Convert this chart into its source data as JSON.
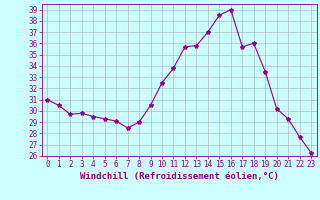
{
  "x": [
    0,
    1,
    2,
    3,
    4,
    5,
    6,
    7,
    8,
    9,
    10,
    11,
    12,
    13,
    14,
    15,
    16,
    17,
    18,
    19,
    20,
    21,
    22,
    23
  ],
  "y": [
    31.0,
    30.5,
    29.7,
    29.8,
    29.5,
    29.3,
    29.1,
    28.5,
    29.0,
    30.5,
    32.5,
    33.8,
    35.7,
    35.8,
    37.0,
    38.5,
    39.0,
    35.7,
    36.0,
    33.5,
    30.2,
    29.3,
    27.7,
    26.3
  ],
  "line_color": "#880088",
  "marker": "*",
  "marker_size": 3,
  "bg_color": "#ccffff",
  "grid_color": "#aaaaaa",
  "xlabel": "Windchill (Refroidissement éolien,°C)",
  "ylim": [
    26,
    39.5
  ],
  "xlim": [
    -0.5,
    23.5
  ],
  "yticks": [
    26,
    27,
    28,
    29,
    30,
    31,
    32,
    33,
    34,
    35,
    36,
    37,
    38,
    39
  ],
  "xticks": [
    0,
    1,
    2,
    3,
    4,
    5,
    6,
    7,
    8,
    9,
    10,
    11,
    12,
    13,
    14,
    15,
    16,
    17,
    18,
    19,
    20,
    21,
    22,
    23
  ],
  "tick_fontsize": 5.5,
  "xlabel_fontsize": 6.5,
  "label_color": "#880088",
  "tick_color": "#880088",
  "grid_linewidth": 0.4,
  "line_linewidth": 0.8
}
